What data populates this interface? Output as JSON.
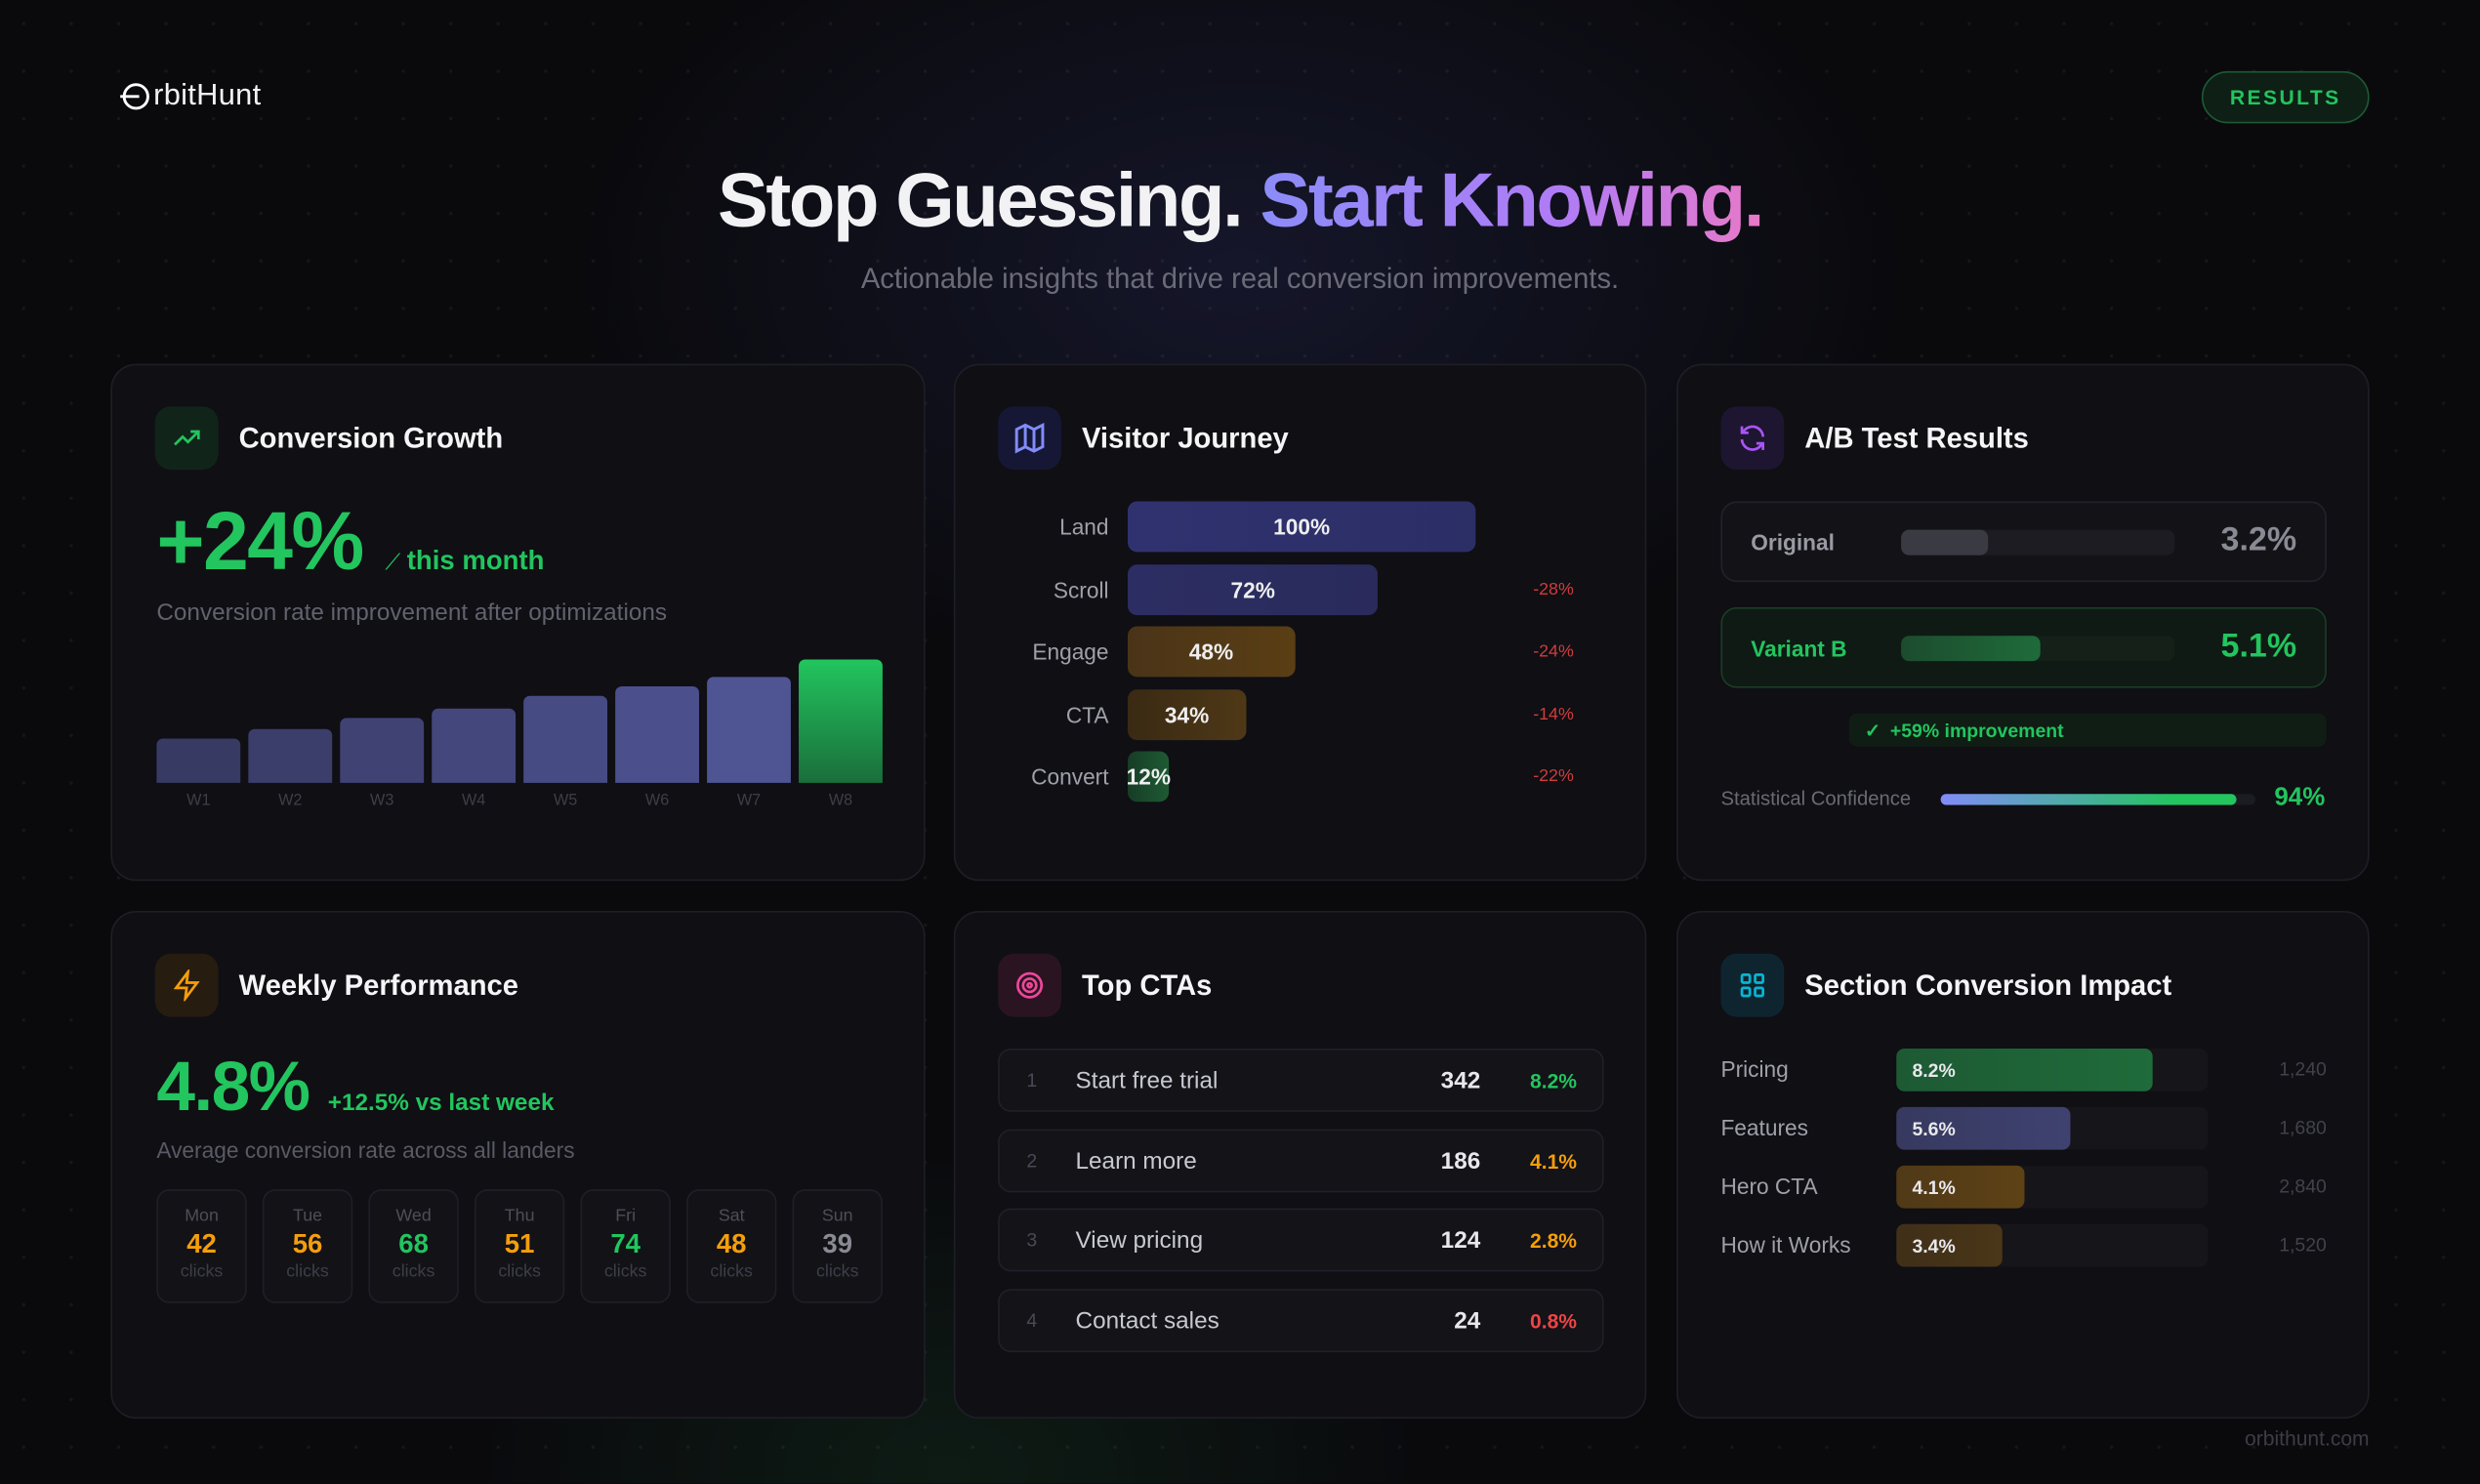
{
  "brand": {
    "name": "rbitHunt",
    "full": "OrbitHunt"
  },
  "header": {
    "badge": "RESULTS",
    "title_a": "Stop Guessing.",
    "title_b": "Start Knowing.",
    "subtitle": "Actionable insights that drive real conversion improvements."
  },
  "growth": {
    "title": "Conversion Growth",
    "value": "+24%",
    "trend": "this month",
    "desc": "Conversion rate improvement after optimizations",
    "chart_data": {
      "type": "bar",
      "categories": [
        "W1",
        "W2",
        "W3",
        "W4",
        "W5",
        "W6",
        "W7",
        "W8"
      ],
      "values": [
        28,
        34,
        41,
        47,
        55,
        61,
        67,
        78
      ],
      "highlight": "W8"
    }
  },
  "journey": {
    "title": "Visitor Journey",
    "steps": [
      {
        "label": "Land",
        "value": "100%",
        "pct": 100,
        "drop": ""
      },
      {
        "label": "Scroll",
        "value": "72%",
        "pct": 72,
        "drop": "-28%"
      },
      {
        "label": "Engage",
        "value": "48%",
        "pct": 48,
        "drop": "-24%"
      },
      {
        "label": "CTA",
        "value": "34%",
        "pct": 34,
        "drop": "-14%"
      },
      {
        "label": "Convert",
        "value": "12%",
        "pct": 12,
        "drop": "-22%"
      }
    ]
  },
  "ab": {
    "title": "A/B Test Results",
    "original": {
      "label": "Original",
      "value": "3.2%",
      "pct": 32
    },
    "variant": {
      "label": "Variant B",
      "value": "5.1%",
      "pct": 51
    },
    "improvement": "+59% improvement",
    "confidence_label": "Statistical Confidence",
    "confidence": "94%",
    "confidence_pct": 94
  },
  "weekly": {
    "title": "Weekly Performance",
    "value": "4.8%",
    "change": "+12.5% vs last week",
    "desc": "Average conversion rate across all landers",
    "unit": "clicks",
    "days": [
      {
        "d": "Mon",
        "v": "42",
        "c": "#f59e0b"
      },
      {
        "d": "Tue",
        "v": "56",
        "c": "#f59e0b"
      },
      {
        "d": "Wed",
        "v": "68",
        "c": "#22c55e"
      },
      {
        "d": "Thu",
        "v": "51",
        "c": "#f59e0b"
      },
      {
        "d": "Fri",
        "v": "74",
        "c": "#22c55e"
      },
      {
        "d": "Sat",
        "v": "48",
        "c": "#f59e0b"
      },
      {
        "d": "Sun",
        "v": "39",
        "c": "#8a8a94"
      }
    ]
  },
  "ctas": {
    "title": "Top CTAs",
    "rows": [
      {
        "n": "1",
        "label": "Start free trial",
        "count": "342",
        "rate": "8.2%",
        "c": "#22c55e"
      },
      {
        "n": "2",
        "label": "Learn more",
        "count": "186",
        "rate": "4.1%",
        "c": "#f59e0b"
      },
      {
        "n": "3",
        "label": "View pricing",
        "count": "124",
        "rate": "2.8%",
        "c": "#f59e0b"
      },
      {
        "n": "4",
        "label": "Contact sales",
        "count": "24",
        "rate": "0.8%",
        "c": "#ef4444"
      }
    ]
  },
  "sections": {
    "title": "Section Conversion Impact",
    "rows": [
      {
        "label": "Pricing",
        "value": "8.2%",
        "pct": 82,
        "count": "1,240",
        "c": "#1f6b3a"
      },
      {
        "label": "Features",
        "value": "5.6%",
        "pct": 56,
        "count": "1,680",
        "c": "#3f4270"
      },
      {
        "label": "Hero CTA",
        "value": "4.1%",
        "pct": 41,
        "count": "2,840",
        "c": "#5e4216"
      },
      {
        "label": "How it Works",
        "value": "3.4%",
        "pct": 34,
        "count": "1,520",
        "c": "#4a3618"
      }
    ]
  },
  "footer": "orbithunt.com"
}
